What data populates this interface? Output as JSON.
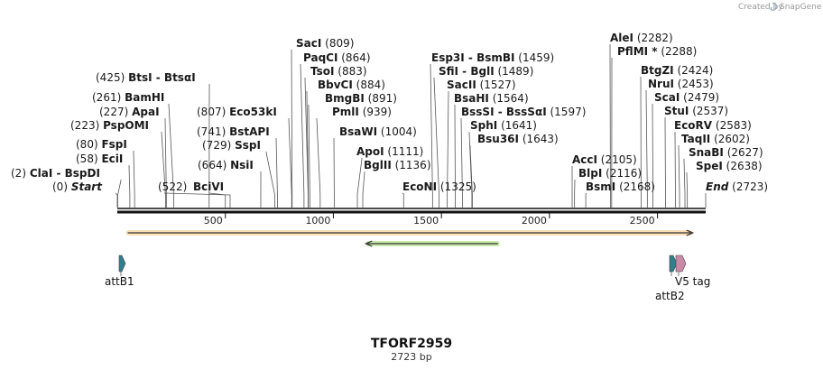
{
  "credit": {
    "text": "Created by",
    "brand": "SnapGene"
  },
  "title": "TFORF2959",
  "subtitle": "2723 bp",
  "sequence_length": 2723,
  "axis_ticks": [
    {
      "value": 500,
      "label": "500"
    },
    {
      "value": 1000,
      "label": "1000"
    },
    {
      "value": 1500,
      "label": "1500"
    },
    {
      "value": 2000,
      "label": "2000"
    },
    {
      "value": 2500,
      "label": "2500"
    }
  ],
  "left_labels": [
    {
      "pos": 0,
      "pos_label": "(0)",
      "name": "Start",
      "style": "italic"
    },
    {
      "pos": 2,
      "pos_label": "(2)",
      "name": "ClaI  -  BspDI"
    },
    {
      "pos": 58,
      "pos_label": "(58)",
      "name": "EciI"
    },
    {
      "pos": 80,
      "pos_label": "(80)",
      "name": "FspI"
    },
    {
      "pos": 223,
      "pos_label": "(223)",
      "name": "PspOMI"
    },
    {
      "pos": 227,
      "pos_label": "(227)",
      "name": "ApaI"
    },
    {
      "pos": 261,
      "pos_label": "(261)",
      "name": "BamHI"
    },
    {
      "pos": 425,
      "pos_label": "(425)",
      "name": "BtsI  -  BtsαI"
    },
    {
      "pos": 522,
      "pos_label": "(522)",
      "name": ""
    }
  ],
  "center_left_labels": [
    {
      "pos": 664,
      "pos_label": "(664)",
      "name": "NsiI"
    },
    {
      "pos": 729,
      "pos_label": "(729)",
      "name": "SspI"
    },
    {
      "pos": 741,
      "pos_label": "(741)",
      "name": "BstAPI"
    },
    {
      "pos": 807,
      "pos_label": "(807)",
      "name": "Eco53kI"
    },
    {
      "pos": 500,
      "pos_label": "",
      "name": "BciVI"
    }
  ],
  "center_labels": [
    {
      "pos": 809,
      "pos_label": "(809)",
      "name": "SacI"
    },
    {
      "pos": 864,
      "pos_label": "(864)",
      "name": "PaqCI"
    },
    {
      "pos": 883,
      "pos_label": "(883)",
      "name": "TsoI"
    },
    {
      "pos": 884,
      "pos_label": "(884)",
      "name": "BbvCI"
    },
    {
      "pos": 891,
      "pos_label": "(891)",
      "name": "BmgBI"
    },
    {
      "pos": 939,
      "pos_label": "(939)",
      "name": "PmlI"
    },
    {
      "pos": 1004,
      "pos_label": "(1004)",
      "name": "BsaWI"
    },
    {
      "pos": 1111,
      "pos_label": "(1111)",
      "name": "ApoI"
    },
    {
      "pos": 1136,
      "pos_label": "(1136)",
      "name": "BglII"
    },
    {
      "pos": 1325,
      "pos_label": "(1325)",
      "name": "EcoNI"
    }
  ],
  "center_right_labels": [
    {
      "pos": 1459,
      "pos_label": "(1459)",
      "name": "Esp3I  -  BsmBI"
    },
    {
      "pos": 1489,
      "pos_label": "(1489)",
      "name": "SfiI  -  BglI"
    },
    {
      "pos": 1527,
      "pos_label": "(1527)",
      "name": "SacII"
    },
    {
      "pos": 1564,
      "pos_label": "(1564)",
      "name": "BsaHI"
    },
    {
      "pos": 1597,
      "pos_label": "(1597)",
      "name": "BssSI  -  BssSαI"
    },
    {
      "pos": 1641,
      "pos_label": "(1641)",
      "name": "SphI"
    },
    {
      "pos": 1643,
      "pos_label": "(1643)",
      "name": "Bsu36I"
    }
  ],
  "right_labels": [
    {
      "pos": 2282,
      "pos_label": "(2282)",
      "name": "AleI"
    },
    {
      "pos": 2288,
      "pos_label": "(2288)",
      "name": "PflMI *"
    },
    {
      "pos": 2424,
      "pos_label": "(2424)",
      "name": "BtgZI"
    },
    {
      "pos": 2453,
      "pos_label": "(2453)",
      "name": "NruI"
    },
    {
      "pos": 2479,
      "pos_label": "(2479)",
      "name": "ScaI"
    },
    {
      "pos": 2537,
      "pos_label": "(2537)",
      "name": "StuI"
    },
    {
      "pos": 2583,
      "pos_label": "(2583)",
      "name": "EcoRV"
    },
    {
      "pos": 2602,
      "pos_label": "(2602)",
      "name": "TaqII"
    },
    {
      "pos": 2627,
      "pos_label": "(2627)",
      "name": "SnaBI"
    },
    {
      "pos": 2638,
      "pos_label": "(2638)",
      "name": "SpeI"
    },
    {
      "pos": 2105,
      "pos_label": "(2105)",
      "name": "AccI"
    },
    {
      "pos": 2116,
      "pos_label": "(2116)",
      "name": "BlpI"
    },
    {
      "pos": 2168,
      "pos_label": "(2168)",
      "name": "BsmI"
    },
    {
      "pos": 2723,
      "pos_label": "(2723)",
      "name": "End",
      "style": "italic"
    }
  ],
  "features": [
    {
      "name": "attB1",
      "start": 20,
      "end": 45,
      "color": "#2f7f8c"
    },
    {
      "name": "attB2",
      "start": 2600,
      "end": 2625,
      "color": "#2f7f8c"
    },
    {
      "name": "V5 tag",
      "start": 2628,
      "end": 2680,
      "color": "#c98aa8"
    }
  ],
  "orfs": [
    {
      "start": 40,
      "end": 2663,
      "direction": "forward",
      "color": "#f4b860"
    },
    {
      "start": 1150,
      "end": 1770,
      "direction": "reverse",
      "color": "#8ed14a"
    }
  ]
}
